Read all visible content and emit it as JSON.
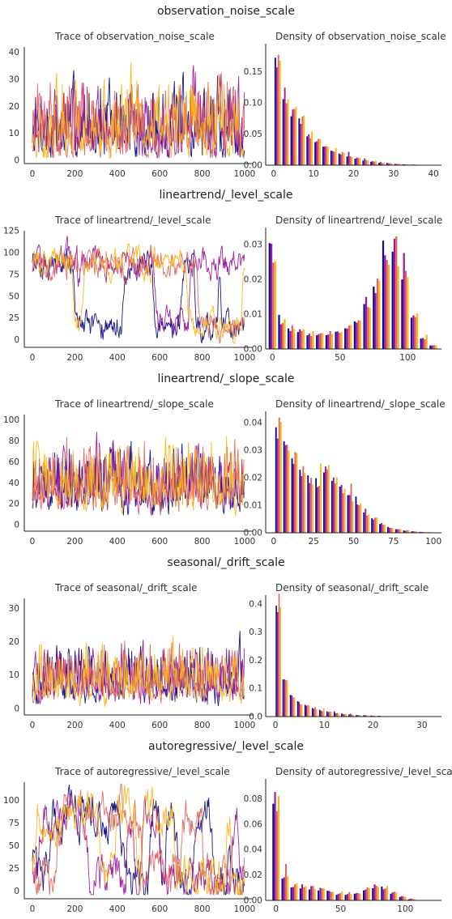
{
  "colors": {
    "s1": "#0d0887",
    "s2": "#9c179e",
    "s3": "#e16462",
    "s4": "#fcb416"
  },
  "sections": [
    {
      "title": "observation_noise_scale",
      "trace_title": "Trace of observation_noise_scale",
      "density_title": "Density of observation_noise_scale",
      "trace": {
        "xticks": [
          "0",
          "200",
          "400",
          "600",
          "800",
          "1000"
        ],
        "yticks": [
          "0",
          "10",
          "20",
          "30",
          "40"
        ],
        "ylim": [
          0,
          42
        ],
        "base": 6,
        "spread": 10,
        "max": 40
      },
      "density": {
        "xticks": [
          "0",
          "10",
          "20",
          "30",
          "40"
        ],
        "yticks": [
          "0.00",
          "0.05",
          "0.10",
          "0.15"
        ],
        "xlim": [
          -2,
          42
        ],
        "ylim": [
          0,
          0.19
        ],
        "bins": [
          1,
          3,
          5,
          7,
          9,
          11,
          13,
          15,
          17,
          19,
          21,
          23,
          25,
          27,
          29,
          31,
          33,
          35,
          37
        ],
        "values": [
          0.155,
          0.115,
          0.085,
          0.065,
          0.05,
          0.04,
          0.032,
          0.025,
          0.02,
          0.015,
          0.011,
          0.008,
          0.006,
          0.004,
          0.003,
          0.002,
          0.0015,
          0.001,
          0.0006
        ],
        "peak_extra": [
          0.03,
          0.0,
          0.005,
          0.0
        ]
      }
    },
    {
      "title": "lineartrend/_level_scale",
      "trace_title": "Trace of lineartrend/_level_scale",
      "density_title": "Density of lineartrend/_level_scale",
      "trace": {
        "xticks": [
          "0",
          "200",
          "400",
          "600",
          "800",
          "1000"
        ],
        "yticks": [
          "0",
          "25",
          "50",
          "75",
          "100",
          "125"
        ],
        "ylim": [
          -5,
          125
        ],
        "base": 85,
        "spread": 20,
        "max": 120,
        "dips": true
      },
      "density": {
        "xticks": [
          "0",
          "50",
          "100"
        ],
        "yticks": [
          "0.00",
          "0.01",
          "0.02",
          "0.03"
        ],
        "xlim": [
          -5,
          125
        ],
        "ylim": [
          0,
          0.034
        ],
        "bins": [
          0,
          7,
          14,
          21,
          28,
          35,
          42,
          49,
          56,
          63,
          70,
          77,
          84,
          91,
          98,
          105,
          112,
          119
        ],
        "values": [
          0.027,
          0.008,
          0.006,
          0.005,
          0.004,
          0.004,
          0.004,
          0.005,
          0.006,
          0.008,
          0.013,
          0.018,
          0.025,
          0.028,
          0.02,
          0.009,
          0.003,
          0.001
        ],
        "peak_extra": [
          0.004,
          0.0,
          0.0,
          0.0
        ]
      }
    },
    {
      "title": "lineartrend/_slope_scale",
      "trace_title": "Trace of lineartrend/_slope_scale",
      "density_title": "Density of lineartrend/_slope_scale",
      "trace": {
        "xticks": [
          "0",
          "200",
          "400",
          "600",
          "800",
          "1000"
        ],
        "yticks": [
          "0",
          "20",
          "40",
          "60",
          "80",
          "100"
        ],
        "ylim": [
          -3,
          105
        ],
        "base": 25,
        "spread": 22,
        "max": 102
      },
      "density": {
        "xticks": [
          "0",
          "25",
          "50",
          "75",
          "100"
        ],
        "yticks": [
          "0.00",
          "0.01",
          "0.02",
          "0.03",
          "0.04"
        ],
        "xlim": [
          -5,
          105
        ],
        "ylim": [
          0,
          0.043
        ],
        "bins": [
          3,
          8,
          13,
          18,
          23,
          28,
          33,
          38,
          43,
          48,
          53,
          58,
          63,
          68,
          73,
          78,
          83,
          88,
          93,
          98
        ],
        "values": [
          0.037,
          0.032,
          0.026,
          0.022,
          0.02,
          0.019,
          0.021,
          0.018,
          0.016,
          0.013,
          0.01,
          0.007,
          0.005,
          0.003,
          0.002,
          0.0012,
          0.0008,
          0.0005,
          0.0003,
          0.0002
        ],
        "peak_extra": [
          0.0,
          0.0,
          0.004,
          0.0
        ]
      }
    },
    {
      "title": "seasonal/_drift_scale",
      "trace_title": "Trace of seasonal/_drift_scale",
      "density_title": "Density of seasonal/_drift_scale",
      "trace": {
        "xticks": [
          "0",
          "200",
          "400",
          "600",
          "800",
          "1000"
        ],
        "yticks": [
          "0",
          "10",
          "20",
          "30"
        ],
        "ylim": [
          -1,
          33
        ],
        "base": 5,
        "spread": 6,
        "max": 31
      },
      "density": {
        "xticks": [
          "0",
          "10",
          "20",
          "30"
        ],
        "yticks": [
          "0.0",
          "0.1",
          "0.2",
          "0.3",
          "0.4"
        ],
        "xlim": [
          -2,
          34
        ],
        "ylim": [
          0,
          0.42
        ],
        "bins": [
          0.6,
          2,
          3.5,
          5,
          6.5,
          8,
          9.5,
          11,
          12.5,
          14,
          15.5,
          17,
          18.5,
          20,
          21.5,
          23,
          24.5
        ],
        "values": [
          0.36,
          0.12,
          0.07,
          0.05,
          0.038,
          0.028,
          0.022,
          0.017,
          0.013,
          0.01,
          0.007,
          0.005,
          0.004,
          0.003,
          0.002,
          0.0015,
          0.001
        ],
        "peak_extra": [
          0.0,
          0.0,
          0.03,
          0.05
        ]
      }
    },
    {
      "title": "autoregressive/_level_scale",
      "trace_title": "Trace of autoregressive/_level_scale",
      "density_title": "Density of autoregressive/_level_scale",
      "trace": {
        "xticks": [
          "0",
          "200",
          "400",
          "600",
          "800",
          "1000"
        ],
        "yticks": [
          "0",
          "25",
          "50",
          "75",
          "100"
        ],
        "ylim": [
          -5,
          120
        ],
        "base": 30,
        "spread": 30,
        "max": 118,
        "bimodal": true
      },
      "density": {
        "xticks": [
          "0",
          "50",
          "100"
        ],
        "yticks": [
          "0.00",
          "0.02",
          "0.04",
          "0.06",
          "0.08"
        ],
        "xlim": [
          -8,
          128
        ],
        "ylim": [
          0,
          0.093
        ],
        "bins": [
          0,
          7,
          14,
          21,
          28,
          35,
          42,
          49,
          56,
          63,
          70,
          77,
          84,
          91,
          98,
          105
        ],
        "values": [
          0.075,
          0.02,
          0.012,
          0.011,
          0.01,
          0.009,
          0.007,
          0.005,
          0.005,
          0.006,
          0.009,
          0.011,
          0.01,
          0.006,
          0.003,
          0.001
        ],
        "peak_extra": [
          0.012,
          0.0,
          0.0,
          0.0
        ]
      }
    }
  ]
}
